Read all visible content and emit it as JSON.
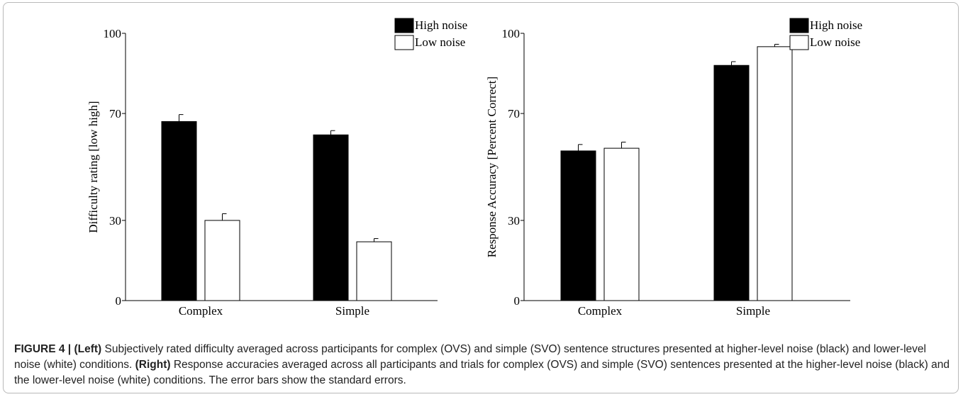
{
  "chart_data": [
    {
      "type": "bar",
      "categories": [
        "Complex",
        "Simple"
      ],
      "series": [
        {
          "name": "High noise",
          "values": [
            67,
            62
          ],
          "errors": [
            2.6,
            1.6
          ],
          "color": "#000000"
        },
        {
          "name": "Low noise",
          "values": [
            30,
            22
          ],
          "errors": [
            2.5,
            1.2
          ],
          "color": "#ffffff"
        }
      ],
      "ylabel": "Difficulty rating [low   high]",
      "ylim": [
        0,
        100
      ],
      "yticks": [
        0,
        30,
        70,
        100
      ],
      "legend": "top-right"
    },
    {
      "type": "bar",
      "categories": [
        "Complex",
        "Simple"
      ],
      "series": [
        {
          "name": "High noise",
          "values": [
            56,
            88
          ],
          "errors": [
            2.4,
            1.4
          ],
          "color": "#000000"
        },
        {
          "name": "Low noise",
          "values": [
            57,
            95
          ],
          "errors": [
            2.3,
            0.9
          ],
          "color": "#ffffff"
        }
      ],
      "ylabel": "Response Accuracy [Percent Correct]",
      "ylim": [
        0,
        100
      ],
      "yticks": [
        0,
        30,
        70,
        100
      ],
      "legend": "top-right"
    }
  ],
  "caption": {
    "label": "FIGURE 4 |",
    "left_tag": "(Left)",
    "left_text": "Subjectively rated difficulty averaged across participants for complex (OVS) and simple (SVO) sentence structures presented at higher-level noise (black) and lower-level noise (white) conditions.",
    "right_tag": "(Right)",
    "right_text": "Response accuracies averaged across all participants and trials for complex (OVS) and simple (SVO) sentences presented at the higher-level noise (black) and the lower-level noise (white) conditions. The error bars show the standard errors."
  }
}
